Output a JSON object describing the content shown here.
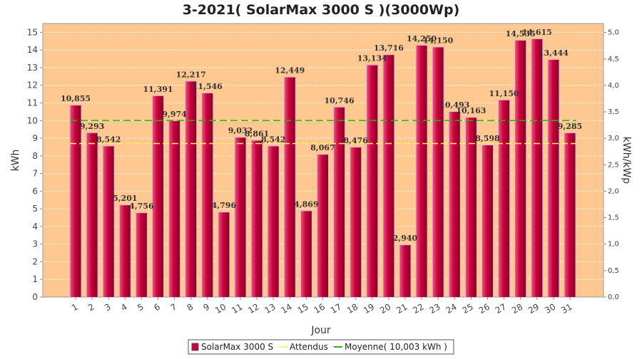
{
  "chart_data": {
    "type": "bar",
    "title": "3-2021( SolarMax 3000 S )(3000Wp)",
    "xlabel": "Jour",
    "ylabel": "kWh",
    "ylabel_right": "kWh/kWp",
    "categories": [
      "1",
      "2",
      "3",
      "4",
      "5",
      "6",
      "7",
      "8",
      "9",
      "10",
      "11",
      "12",
      "13",
      "14",
      "15",
      "16",
      "17",
      "18",
      "19",
      "20",
      "21",
      "22",
      "23",
      "24",
      "25",
      "26",
      "27",
      "28",
      "29",
      "30",
      "31"
    ],
    "ylim": [
      0,
      15.5
    ],
    "y_ticks": [
      0,
      1,
      2,
      3,
      4,
      5,
      6,
      7,
      8,
      9,
      10,
      11,
      12,
      13,
      14,
      15
    ],
    "ylim_right": [
      0,
      5.17
    ],
    "y_right_ticks": [
      "0,0",
      "0,5",
      "1,0",
      "1,5",
      "2,0",
      "2,5",
      "3,0",
      "3,5",
      "4,0",
      "4,5",
      "5,0"
    ],
    "series": [
      {
        "name": "SolarMax 3000 S",
        "values": [
          10.855,
          9.293,
          8.542,
          5.201,
          4.756,
          11.391,
          9.974,
          12.217,
          11.546,
          4.796,
          9.032,
          8.861,
          8.542,
          12.449,
          4.869,
          8.067,
          10.746,
          8.476,
          13.134,
          13.716,
          2.94,
          14.25,
          14.15,
          10.493,
          10.163,
          8.598,
          11.15,
          14.535,
          14.615,
          13.444,
          9.285
        ],
        "labels": [
          "10,855",
          "9,293",
          "8,542",
          "5,201",
          "4,756",
          "11,391",
          "9,974",
          "12,217",
          "11,546",
          "4,796",
          "9,032",
          "8,861",
          "8,542",
          "12,449",
          "4,869",
          "8,067",
          "10,746",
          "8,476",
          "13,134",
          "13,716",
          "2,940",
          "14,250",
          "14,150",
          "10,493",
          "10,163",
          "8,598",
          "11,150",
          "14,535",
          "14,615",
          "13,444",
          "9,285"
        ]
      }
    ],
    "lines": [
      {
        "name": "Attendus",
        "value": 8.7
      },
      {
        "name": "Moyenne( 10,003 kWh )",
        "value": 10.003
      }
    ],
    "legend": [
      "SolarMax 3000 S",
      "Attendus",
      "Moyenne( 10,003 kWh )"
    ],
    "legend_position": "bottom",
    "grid": true,
    "colors": {
      "bar": "#c8003c",
      "bar_light": "#e8507a",
      "bar_edge": "#e8b8c0",
      "plot_bg": "#ffc891",
      "attendus": "#ffee66",
      "moyenne": "#22bb00",
      "grid": "#ffffff"
    }
  }
}
